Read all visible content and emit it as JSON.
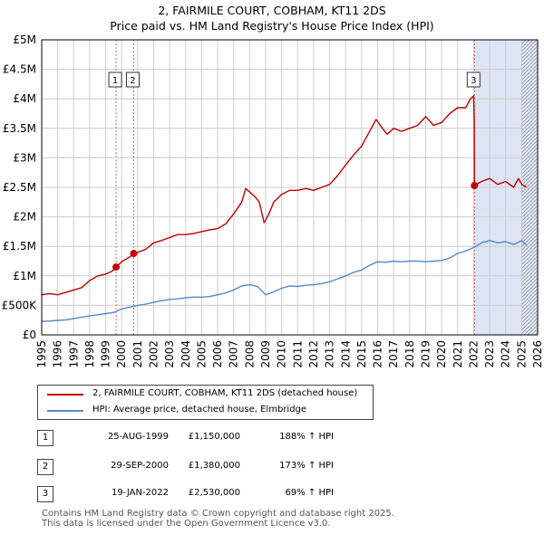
{
  "title": {
    "line1": "2, FAIRMILE COURT, COBHAM, KT11 2DS",
    "line2": "Price paid vs. HM Land Registry's House Price Index (HPI)"
  },
  "colors": {
    "property": "#c00000",
    "hpi": "#5588cc",
    "shade": "#dde5f5",
    "grid": "#cccccc",
    "marker_line": "#e06060"
  },
  "chart_data": {
    "type": "line",
    "title": "Price paid vs. HM Land Registry's House Price Index (HPI)",
    "xlabel": "",
    "ylabel": "",
    "xlim": [
      1995,
      2026
    ],
    "ylim": [
      0,
      5000000
    ],
    "x_ticks": [
      "1995",
      "1996",
      "1997",
      "1998",
      "1999",
      "2000",
      "2001",
      "2002",
      "2003",
      "2004",
      "2005",
      "2006",
      "2007",
      "2008",
      "2009",
      "2010",
      "2011",
      "2012",
      "2013",
      "2014",
      "2015",
      "2016",
      "2017",
      "2018",
      "2019",
      "2020",
      "2021",
      "2022",
      "2023",
      "2024",
      "2025",
      "2026"
    ],
    "y_ticks": [
      {
        "value": 0,
        "label": "£0"
      },
      {
        "value": 500000,
        "label": "£500K"
      },
      {
        "value": 1000000,
        "label": "£1M"
      },
      {
        "value": 1500000,
        "label": "£1.5M"
      },
      {
        "value": 2000000,
        "label": "£2M"
      },
      {
        "value": 2500000,
        "label": "£2.5M"
      },
      {
        "value": 3000000,
        "label": "£3M"
      },
      {
        "value": 3500000,
        "label": "£3.5M"
      },
      {
        "value": 4000000,
        "label": "£4M"
      },
      {
        "value": 4500000,
        "label": "£4.5M"
      },
      {
        "value": 5000000,
        "label": "£5M"
      }
    ],
    "grid": true,
    "shaded_region": [
      2022.05,
      2026
    ],
    "hatched_region": [
      2025.0,
      2026
    ],
    "series": [
      {
        "name": "2, FAIRMILE COURT, COBHAM, KT11 2DS (detached house)",
        "x": [
          1995.0,
          1995.5,
          1996.0,
          1996.5,
          1997.0,
          1997.5,
          1998.0,
          1998.5,
          1999.0,
          1999.4,
          1999.65,
          2000.0,
          2000.5,
          2000.75,
          2001.0,
          2001.5,
          2002.0,
          2002.5,
          2003.0,
          2003.5,
          2004.0,
          2004.5,
          2005.0,
          2005.5,
          2006.0,
          2006.5,
          2007.0,
          2007.5,
          2007.75,
          2008.0,
          2008.3,
          2008.6,
          2008.9,
          2009.2,
          2009.5,
          2010.0,
          2010.5,
          2011.0,
          2011.5,
          2012.0,
          2012.5,
          2013.0,
          2013.5,
          2014.0,
          2014.5,
          2015.0,
          2015.5,
          2015.9,
          2016.3,
          2016.6,
          2017.0,
          2017.5,
          2018.0,
          2018.5,
          2019.0,
          2019.5,
          2020.0,
          2020.5,
          2021.0,
          2021.5,
          2021.8,
          2022.0,
          2022.04,
          2022.05,
          2022.5,
          2023.0,
          2023.5,
          2024.0,
          2024.5,
          2024.8,
          2025.0,
          2025.3
        ],
        "values": [
          680000,
          700000,
          680000,
          720000,
          760000,
          800000,
          920000,
          1000000,
          1030000,
          1080000,
          1150000,
          1240000,
          1320000,
          1380000,
          1400000,
          1450000,
          1560000,
          1600000,
          1650000,
          1700000,
          1700000,
          1720000,
          1750000,
          1780000,
          1800000,
          1880000,
          2050000,
          2250000,
          2480000,
          2420000,
          2350000,
          2250000,
          1900000,
          2050000,
          2250000,
          2380000,
          2450000,
          2450000,
          2480000,
          2450000,
          2500000,
          2550000,
          2700000,
          2880000,
          3050000,
          3200000,
          3450000,
          3650000,
          3500000,
          3400000,
          3500000,
          3450000,
          3500000,
          3550000,
          3700000,
          3550000,
          3600000,
          3750000,
          3850000,
          3850000,
          4000000,
          4050000,
          3600000,
          2530000,
          2600000,
          2650000,
          2550000,
          2600000,
          2500000,
          2650000,
          2550000,
          2500000
        ]
      },
      {
        "name": "HPI: Average price, detached house, Elmbridge",
        "x": [
          1995.0,
          1995.5,
          1996.0,
          1996.5,
          1997.0,
          1997.5,
          1998.0,
          1998.5,
          1999.0,
          1999.5,
          2000.0,
          2000.5,
          2001.0,
          2001.5,
          2002.0,
          2002.5,
          2003.0,
          2003.5,
          2004.0,
          2004.5,
          2005.0,
          2005.5,
          2006.0,
          2006.5,
          2007.0,
          2007.5,
          2008.0,
          2008.5,
          2009.0,
          2009.5,
          2010.0,
          2010.5,
          2011.0,
          2011.5,
          2012.0,
          2012.5,
          2013.0,
          2013.5,
          2014.0,
          2014.5,
          2015.0,
          2015.5,
          2016.0,
          2016.5,
          2017.0,
          2017.5,
          2018.0,
          2018.5,
          2019.0,
          2019.5,
          2020.0,
          2020.5,
          2021.0,
          2021.5,
          2022.0,
          2022.5,
          2023.0,
          2023.5,
          2024.0,
          2024.5,
          2025.0,
          2025.3
        ],
        "values": [
          230000,
          235000,
          245000,
          255000,
          275000,
          300000,
          320000,
          340000,
          360000,
          380000,
          440000,
          470000,
          500000,
          520000,
          550000,
          580000,
          600000,
          610000,
          630000,
          640000,
          640000,
          650000,
          680000,
          710000,
          760000,
          830000,
          850000,
          820000,
          680000,
          730000,
          790000,
          830000,
          820000,
          840000,
          850000,
          870000,
          900000,
          950000,
          1000000,
          1060000,
          1100000,
          1180000,
          1240000,
          1230000,
          1250000,
          1240000,
          1250000,
          1250000,
          1240000,
          1250000,
          1260000,
          1300000,
          1380000,
          1420000,
          1480000,
          1560000,
          1600000,
          1560000,
          1580000,
          1530000,
          1600000,
          1520000
        ]
      }
    ],
    "sale_markers": [
      {
        "label": "1",
        "x": 1999.65,
        "y": 1150000
      },
      {
        "label": "2",
        "x": 2000.75,
        "y": 1380000
      },
      {
        "label": "3",
        "x": 2022.05,
        "y": 2530000
      }
    ]
  },
  "legend": {
    "property": "2, FAIRMILE COURT, COBHAM, KT11 2DS (detached house)",
    "hpi": "HPI: Average price, detached house, Elmbridge"
  },
  "sales": [
    {
      "num": "1",
      "date": "25-AUG-1999",
      "price": "£1,150,000",
      "hpi": "188% ↑ HPI"
    },
    {
      "num": "2",
      "date": "29-SEP-2000",
      "price": "£1,380,000",
      "hpi": "173% ↑ HPI"
    },
    {
      "num": "3",
      "date": "19-JAN-2022",
      "price": "£2,530,000",
      "hpi": "69% ↑ HPI"
    }
  ],
  "footer": {
    "line1": "Contains HM Land Registry data © Crown copyright and database right 2025.",
    "line2": "This data is licensed under the Open Government Licence v3.0."
  }
}
